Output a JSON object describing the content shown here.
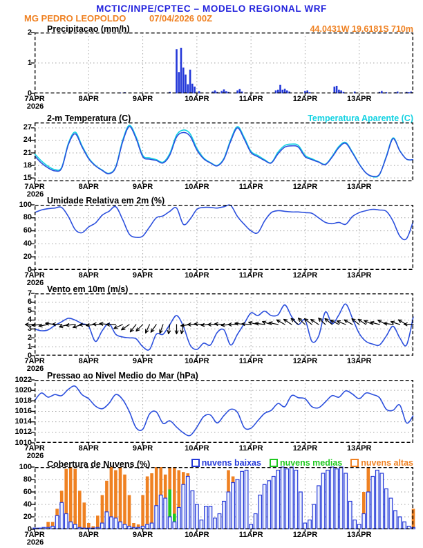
{
  "header": {
    "title": "MCTIC/INPE/CPTEC – MODELO REGIONAL WRF",
    "station": "MG PEDRO LEOPOLDO",
    "run": "07/04/2026 00Z",
    "location": "44.0431W 19.6181S 710m"
  },
  "colors": {
    "title_blue": "#2323dd",
    "orange": "#ef8122",
    "cyan": "#12d2e2",
    "line_blue": "#2b4fdd",
    "bar_blue": "#2338d8",
    "green": "#1fc81f",
    "cloud_low_fill": "#eef2fd",
    "grid": "#a0a0a0",
    "frame": "#000000"
  },
  "x_axis": {
    "span_hours": 168,
    "tick_hours": [
      0,
      24,
      48,
      72,
      96,
      120,
      144
    ],
    "tick_labels": [
      "7APR",
      "8APR",
      "9APR",
      "10APR",
      "11APR",
      "12APR",
      "13APR"
    ],
    "year_label": "2026"
  },
  "chart_data": [
    {
      "id": "precipitation",
      "title": "Precipitacao (mm/h)",
      "type": "bar",
      "ylim": [
        0,
        2
      ],
      "yticks": [
        0,
        1,
        2
      ],
      "series": [
        {
          "name": "precipitacao",
          "type": "bars_sparse",
          "color_key": "bar_blue",
          "points_hour_value": [
            [
              38,
              0.03
            ],
            [
              40,
              0.04
            ],
            [
              60,
              0.05
            ],
            [
              63,
              1.45
            ],
            [
              64,
              0.7
            ],
            [
              65,
              1.5
            ],
            [
              66,
              0.85
            ],
            [
              67,
              0.62
            ],
            [
              68,
              0.3
            ],
            [
              69,
              0.78
            ],
            [
              70,
              0.32
            ],
            [
              71,
              0.22
            ],
            [
              73,
              0.07
            ],
            [
              79,
              0.06
            ],
            [
              80,
              0.1
            ],
            [
              81,
              0.05
            ],
            [
              83,
              0.08
            ],
            [
              84,
              0.13
            ],
            [
              85,
              0.07
            ],
            [
              86,
              0.05
            ],
            [
              90,
              0.1
            ],
            [
              91,
              0.14
            ],
            [
              92,
              0.06
            ],
            [
              107,
              0.1
            ],
            [
              108,
              0.12
            ],
            [
              109,
              0.28
            ],
            [
              110,
              0.12
            ],
            [
              111,
              0.15
            ],
            [
              112,
              0.1
            ],
            [
              113,
              0.06
            ],
            [
              120,
              0.08
            ],
            [
              121,
              0.1
            ],
            [
              122,
              0.04
            ],
            [
              133,
              0.22
            ],
            [
              134,
              0.25
            ],
            [
              135,
              0.12
            ],
            [
              136,
              0.1
            ],
            [
              137,
              0.05
            ],
            [
              142,
              0.06
            ],
            [
              153,
              0.05
            ],
            [
              154,
              0.08
            ],
            [
              156,
              0.04
            ],
            [
              160,
              0.04
            ],
            [
              161,
              0.06
            ],
            [
              163,
              0.03
            ],
            [
              165,
              0.05
            ],
            [
              166,
              0.04
            ],
            [
              167,
              0.06
            ]
          ]
        }
      ]
    },
    {
      "id": "temperature",
      "title": "2-m Temperatura (C)",
      "legend_right": {
        "label": "Temperatura Aparente (C)",
        "color_key": "cyan"
      },
      "type": "line",
      "ylim": [
        14.2,
        28.3
      ],
      "yticks": [
        15,
        18,
        21,
        24,
        27
      ],
      "series": [
        {
          "name": "temperatura-aparente",
          "type": "line",
          "color_key": "cyan",
          "step_hours": 3,
          "values": [
            20.8,
            19.1,
            17.8,
            17.0,
            17.5,
            23.3,
            26.0,
            22.8,
            19.8,
            18.0,
            16.9,
            16.1,
            17.7,
            23.9,
            27.6,
            24.9,
            20.4,
            19.8,
            19.4,
            18.8,
            20.9,
            25.3,
            26.5,
            25.6,
            22.1,
            19.8,
            18.7,
            18.0,
            19.7,
            24.2,
            27.3,
            24.7,
            21.4,
            20.4,
            19.4,
            18.7,
            21.2,
            22.8,
            23.1,
            22.8,
            20.4,
            19.6,
            18.9,
            18.3,
            20.2,
            22.6,
            23.5,
            21.2,
            18.4,
            16.2,
            15.3,
            15.8,
            20.2,
            24.6,
            21.6,
            19.5,
            19.4
          ]
        },
        {
          "name": "temperatura-2m",
          "type": "line",
          "color_key": "line_blue",
          "step_hours": 3,
          "values": [
            20.3,
            18.6,
            17.4,
            16.7,
            17.3,
            23.0,
            25.6,
            22.5,
            19.6,
            17.9,
            16.8,
            16.0,
            17.5,
            23.5,
            27.3,
            24.5,
            20.1,
            19.5,
            19.2,
            18.6,
            20.5,
            24.8,
            25.9,
            25.0,
            21.7,
            19.6,
            18.6,
            17.9,
            19.5,
            23.8,
            27.0,
            24.3,
            21.1,
            20.1,
            19.2,
            18.6,
            20.8,
            22.4,
            22.7,
            22.4,
            20.1,
            19.4,
            18.8,
            18.2,
            20.0,
            22.3,
            23.3,
            21.0,
            18.3,
            16.2,
            15.4,
            15.9,
            20.0,
            24.4,
            21.5,
            19.5,
            19.4
          ]
        }
      ]
    },
    {
      "id": "humidity",
      "title": "Umidade Relativa em 2m (%)",
      "type": "line",
      "ylim": [
        0,
        100
      ],
      "yticks": [
        0,
        20,
        40,
        60,
        80,
        100
      ],
      "series": [
        {
          "name": "umidade-relativa",
          "type": "line",
          "color_key": "line_blue",
          "step_hours": 3,
          "values": [
            88,
            92,
            94,
            95,
            96,
            82,
            62,
            57,
            66,
            72,
            84,
            90,
            97,
            78,
            55,
            50,
            52,
            66,
            80,
            83,
            90,
            95,
            70,
            78,
            93,
            96,
            96,
            95,
            97,
            99,
            82,
            70,
            60,
            57,
            75,
            88,
            91,
            90,
            89,
            89,
            88,
            87,
            80,
            73,
            71,
            73,
            70,
            82,
            88,
            91,
            93,
            92,
            90,
            75,
            52,
            48,
            75
          ]
        }
      ]
    },
    {
      "id": "wind",
      "title": "Vento em 10m (m/s)",
      "type": "line",
      "ylim": [
        0,
        7
      ],
      "yticks": [
        0,
        1,
        2,
        3,
        4,
        5,
        6,
        7
      ],
      "series": [
        {
          "name": "velocidade-vento",
          "type": "line",
          "color_key": "line_blue",
          "step_hours": 3,
          "values": [
            3.0,
            2.8,
            2.9,
            3.4,
            3.8,
            4.2,
            4.0,
            3.6,
            3.3,
            1.6,
            2.8,
            3.6,
            2.4,
            2.1,
            2.0,
            1.9,
            1.0,
            0.7,
            2.4,
            2.4,
            3.5,
            4.5,
            3.3,
            1.2,
            0.7,
            1.4,
            1.2,
            2.6,
            2.9,
            1.2,
            2.4,
            3.6,
            4.8,
            4.5,
            5.0,
            4.5,
            4.6,
            5.7,
            4.4,
            3.5,
            4.0,
            1.6,
            2.2,
            4.9,
            3.6,
            4.6,
            5.8,
            4.2,
            2.5,
            1.6,
            1.3,
            1.2,
            2.2,
            3.3,
            2.0,
            1.2,
            4.4
          ]
        },
        {
          "name": "vetores-vento",
          "type": "arrows",
          "color_key": "frame",
          "baseline": 3.5,
          "step_hours": 3,
          "angles_deg": [
            180,
            185,
            190,
            172,
            178,
            195,
            185,
            198,
            182,
            186,
            178,
            174,
            180,
            205,
            215,
            232,
            225,
            245,
            235,
            250,
            262,
            270,
            258,
            188,
            180,
            176,
            184,
            180,
            176,
            185,
            180,
            172,
            176,
            166,
            172,
            162,
            168,
            150,
            146,
            140,
            137,
            142,
            147,
            137,
            141,
            152,
            158,
            150,
            142,
            146,
            155,
            165,
            152,
            172,
            162,
            150,
            178
          ]
        }
      ]
    },
    {
      "id": "pressure",
      "title": "Pressao ao Nivel Medio do Mar (hPa)",
      "type": "line",
      "ylim": [
        1010,
        1022
      ],
      "yticks": [
        1010,
        1012,
        1014,
        1016,
        1018,
        1020,
        1022
      ],
      "series": [
        {
          "name": "pressao-nivel-mar",
          "type": "line",
          "color_key": "line_blue",
          "step_hours": 3,
          "values": [
            1018.0,
            1019.5,
            1018.7,
            1019.2,
            1019.0,
            1020.2,
            1020.8,
            1019.2,
            1018.4,
            1017.0,
            1016.5,
            1017.5,
            1019.2,
            1018.3,
            1016.0,
            1012.9,
            1012.6,
            1015.5,
            1015.9,
            1013.7,
            1014.2,
            1013.0,
            1011.9,
            1011.4,
            1013.0,
            1015.0,
            1015.3,
            1013.8,
            1015.2,
            1016.4,
            1015.8,
            1012.9,
            1012.8,
            1014.2,
            1015.6,
            1016.2,
            1017.5,
            1016.9,
            1019.0,
            1018.6,
            1018.4,
            1016.9,
            1016.7,
            1017.8,
            1019.0,
            1018.7,
            1019.9,
            1019.3,
            1018.4,
            1019.5,
            1019.2,
            1018.6,
            1016.4,
            1016.2,
            1017.2,
            1013.8,
            1015.2
          ]
        }
      ]
    },
    {
      "id": "clouds",
      "title": "Cobertura de Nuvens (%)",
      "type": "bar",
      "ylim": [
        0,
        100
      ],
      "yticks": [
        0,
        20,
        40,
        60,
        80,
        100
      ],
      "legend": [
        {
          "label": "nuvens baixas",
          "color_key": "bar_blue"
        },
        {
          "label": "nuvens medias",
          "color_key": "green"
        },
        {
          "label": "nuvens altas",
          "color_key": "orange"
        }
      ],
      "series": [
        {
          "name": "nuvens-altas",
          "type": "bars",
          "style": "solid",
          "color_key": "orange",
          "step_hours": 2,
          "values": [
            0,
            0,
            0,
            12,
            12,
            33,
            62,
            97,
            100,
            97,
            62,
            43,
            10,
            5,
            22,
            55,
            78,
            100,
            95,
            100,
            88,
            55,
            10,
            8,
            55,
            85,
            90,
            100,
            100,
            88,
            100,
            100,
            95,
            92,
            90,
            55,
            33,
            5,
            0,
            5,
            0,
            0,
            25,
            95,
            85,
            0,
            0,
            0,
            0,
            0,
            12,
            0,
            0,
            0,
            10,
            87,
            0,
            0,
            0,
            0,
            10,
            0,
            0,
            0,
            0,
            0,
            0,
            0,
            0,
            0,
            0,
            0,
            8,
            60,
            100,
            80,
            50,
            12,
            0,
            0,
            0,
            0,
            0,
            0,
            33
          ]
        },
        {
          "name": "nuvens-medias",
          "type": "bars",
          "style": "solid",
          "color_key": "green",
          "step_hours": 2,
          "values": [
            0,
            0,
            0,
            0,
            0,
            10,
            13,
            12,
            10,
            0,
            0,
            0,
            0,
            0,
            0,
            0,
            0,
            0,
            0,
            0,
            0,
            0,
            0,
            0,
            0,
            0,
            0,
            12,
            50,
            47,
            64,
            25,
            15,
            33,
            10,
            0,
            0,
            0,
            0,
            0,
            0,
            0,
            0,
            0,
            0,
            0,
            0,
            0,
            0,
            0,
            0,
            0,
            0,
            0,
            0,
            0,
            0,
            0,
            0,
            0,
            0,
            0,
            0,
            0,
            0,
            0,
            0,
            4,
            0,
            0,
            0,
            0,
            0,
            0,
            0,
            0,
            0,
            0,
            0,
            0,
            0,
            0,
            0,
            0,
            0
          ]
        },
        {
          "name": "nuvens-baixas",
          "type": "bars",
          "style": "open",
          "color_key": "bar_blue",
          "fill_key": "cloud_low_fill",
          "step_hours": 2,
          "values": [
            2,
            2,
            3,
            3,
            5,
            22,
            43,
            25,
            12,
            8,
            3,
            2,
            2,
            2,
            3,
            10,
            28,
            20,
            18,
            12,
            8,
            5,
            3,
            3,
            5,
            8,
            10,
            38,
            55,
            50,
            20,
            12,
            35,
            72,
            85,
            62,
            40,
            15,
            37,
            37,
            18,
            25,
            45,
            60,
            75,
            80,
            93,
            95,
            8,
            25,
            55,
            72,
            78,
            85,
            95,
            100,
            97,
            100,
            95,
            60,
            10,
            15,
            40,
            70,
            90,
            95,
            100,
            97,
            100,
            90,
            45,
            15,
            8,
            25,
            60,
            85,
            95,
            90,
            65,
            50,
            30,
            20,
            12,
            5,
            3
          ]
        }
      ]
    }
  ]
}
